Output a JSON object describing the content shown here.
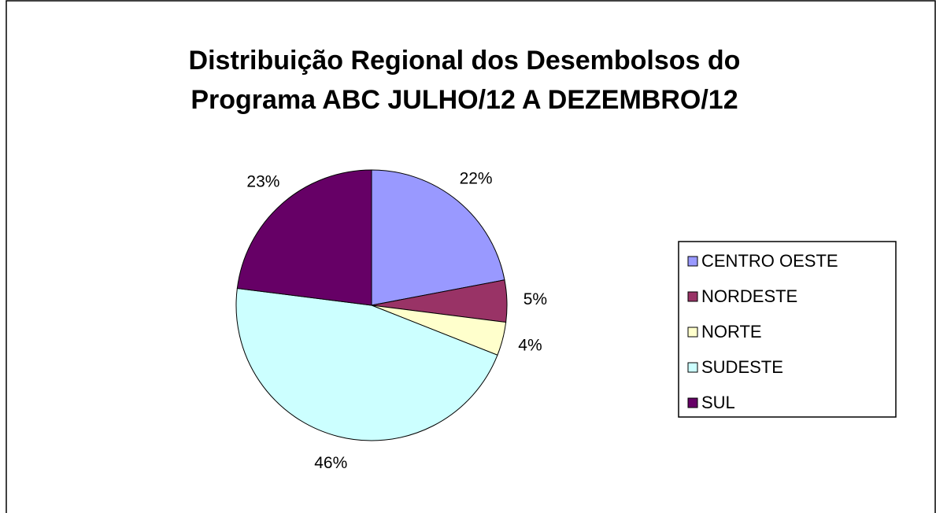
{
  "chart_data": {
    "type": "pie",
    "title": [
      "Distribuição Regional dos Desembolsos do",
      "Programa ABC JULHO/12 A DEZEMBRO/12"
    ],
    "categories": [
      "CENTRO OESTE",
      "NORDESTE",
      "NORTE",
      "SUDESTE",
      "SUL"
    ],
    "values": [
      22,
      5,
      4,
      46,
      23
    ],
    "value_labels": [
      "22%",
      "5%",
      "4%",
      "46%",
      "23%"
    ],
    "colors": [
      "#9999ff",
      "#993366",
      "#ffffcc",
      "#ccffff",
      "#660066"
    ],
    "legend": "right"
  }
}
